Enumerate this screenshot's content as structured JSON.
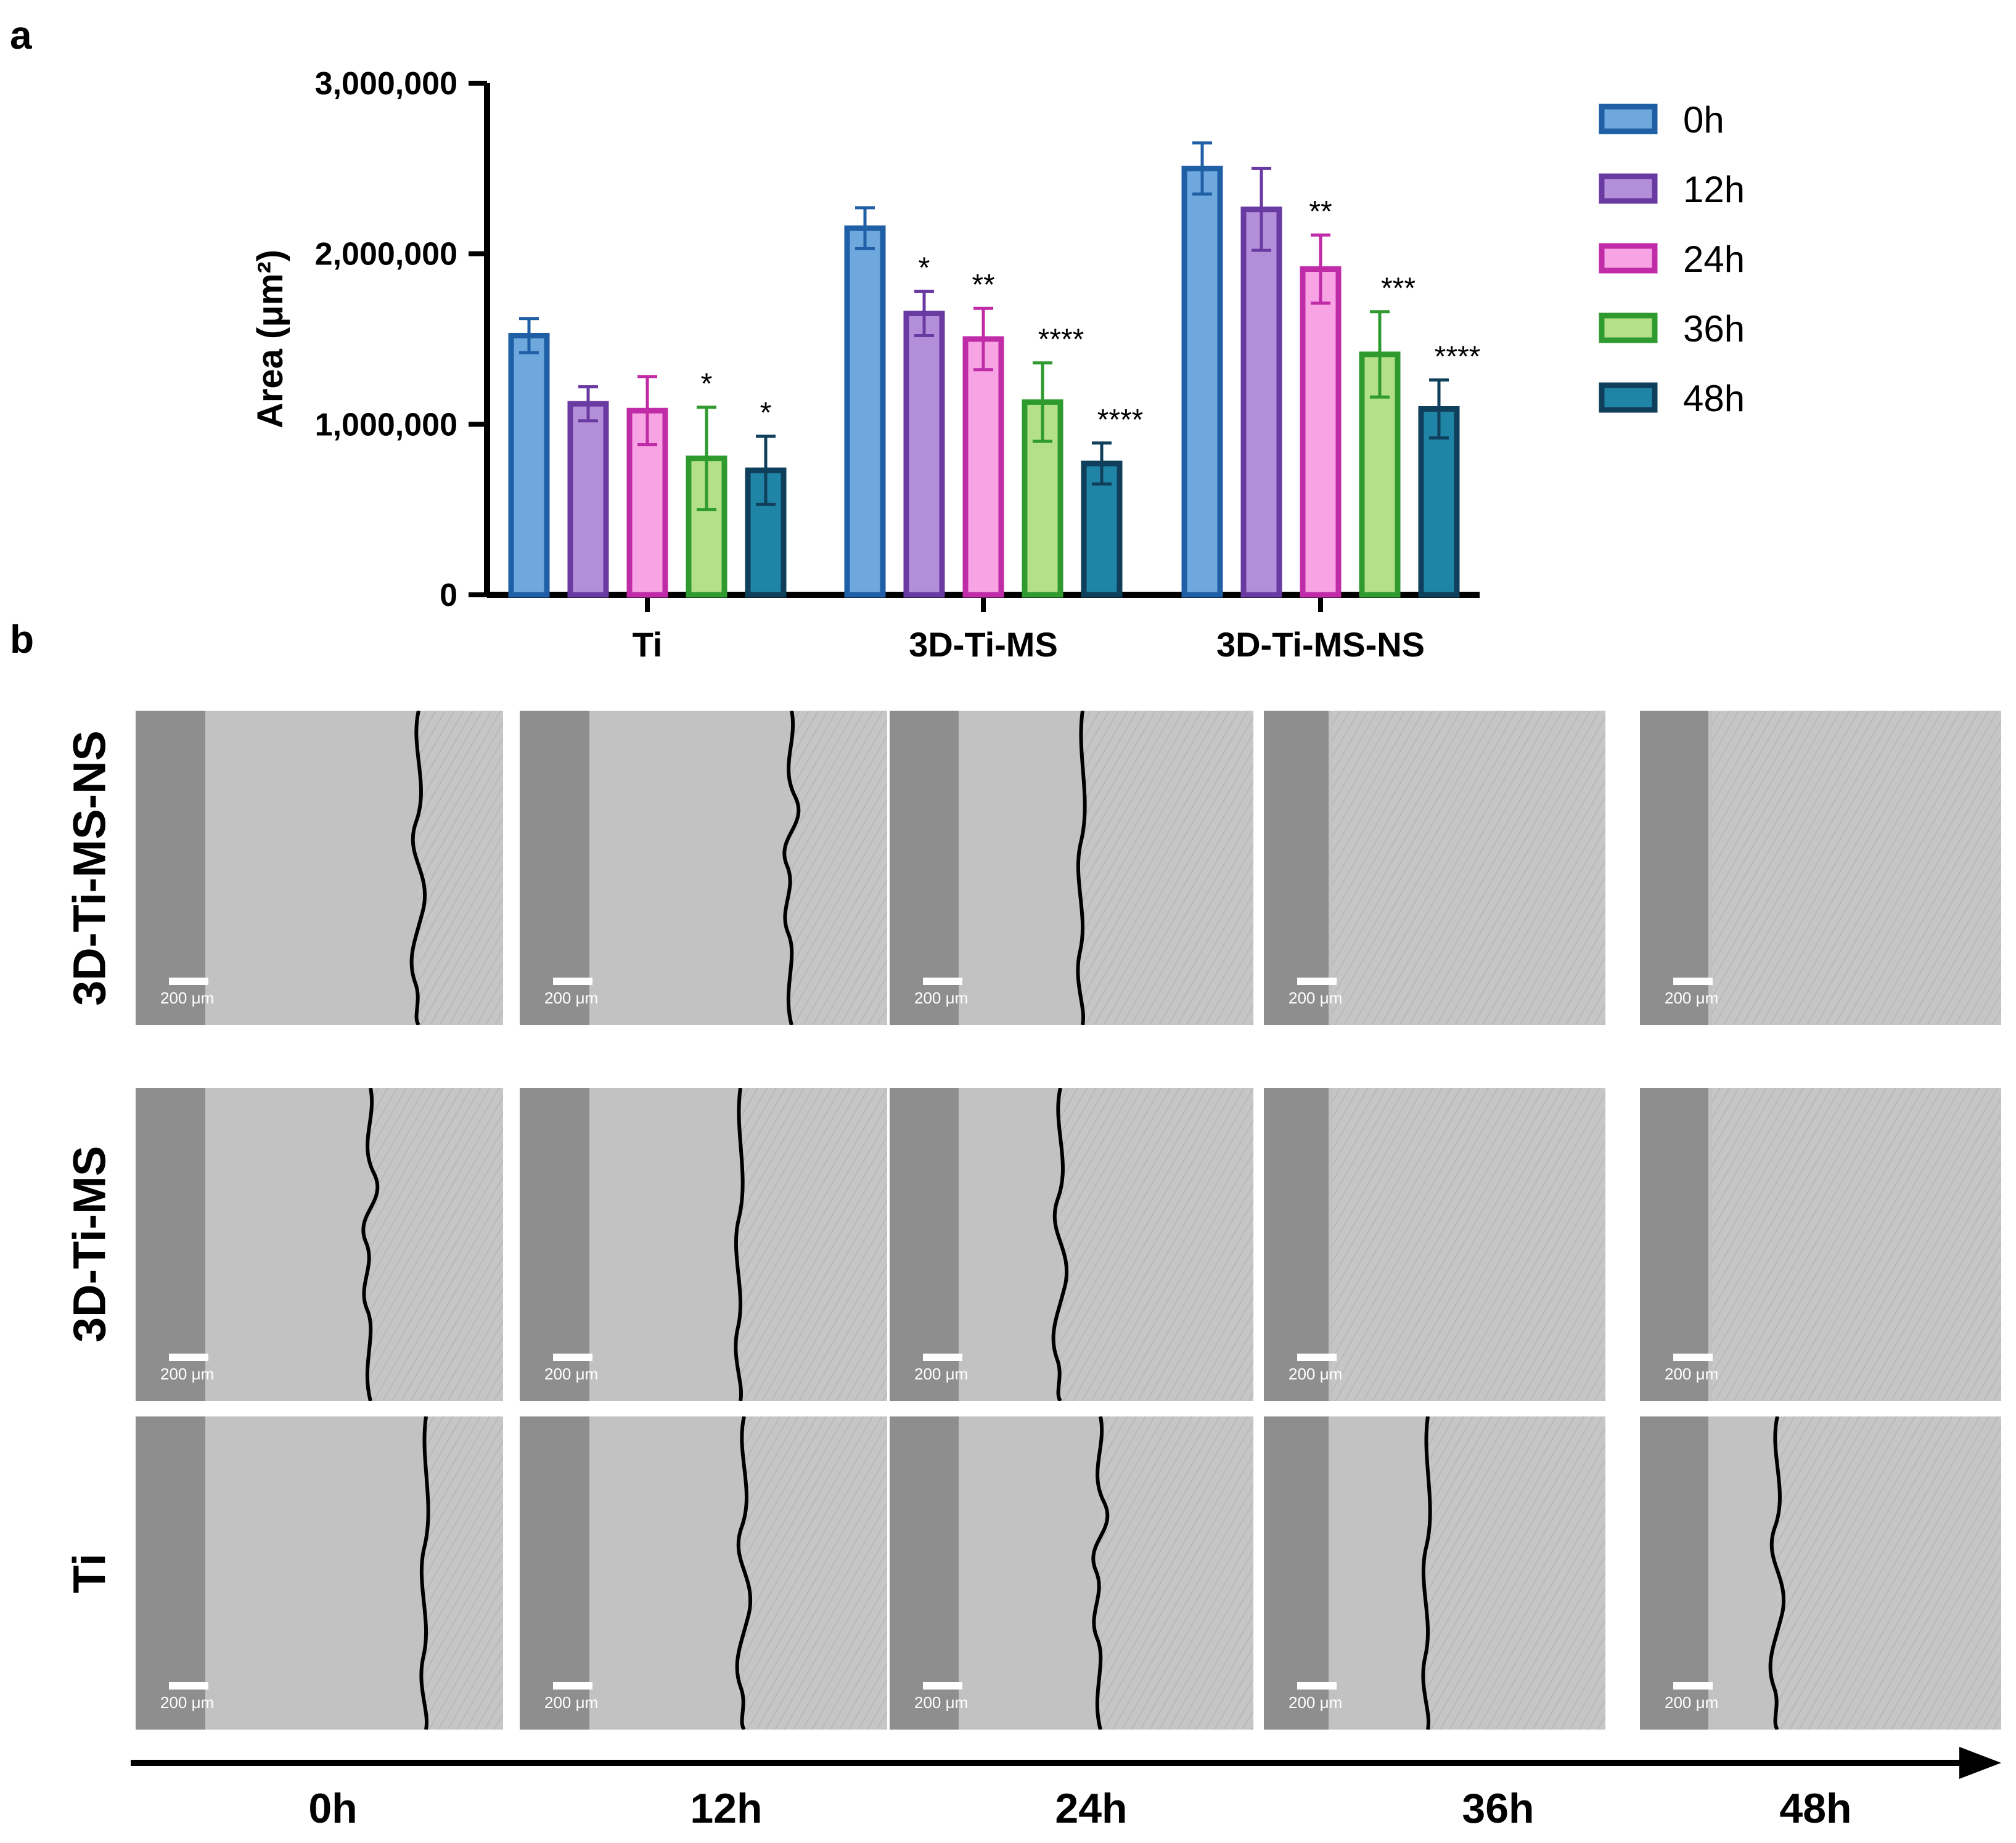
{
  "panel_a_label": "a",
  "panel_b_label": "b",
  "chart_data": {
    "type": "bar",
    "ylabel": "Area (μm²)",
    "ylim": [
      0,
      3000000
    ],
    "yticks": [
      0,
      1000000,
      2000000,
      3000000
    ],
    "ytick_labels": [
      "0",
      "1,000,000",
      "2,000,000",
      "3,000,000"
    ],
    "categories": [
      "Ti",
      "3D-Ti-MS",
      "3D-Ti-MS-NS"
    ],
    "legend_position": "right",
    "series": [
      {
        "name": "0h",
        "fill": "#6fa8dc",
        "stroke": "#1f5fa6",
        "values": [
          1520000,
          2150000,
          2500000
        ],
        "errors": [
          100000,
          120000,
          150000
        ],
        "sig": [
          "",
          "",
          ""
        ]
      },
      {
        "name": "12h",
        "fill": "#b48fd9",
        "stroke": "#6a3aa3",
        "values": [
          1120000,
          1650000,
          2260000
        ],
        "errors": [
          100000,
          130000,
          240000
        ],
        "sig": [
          "",
          "*",
          ""
        ]
      },
      {
        "name": "24h",
        "fill": "#f7a3e4",
        "stroke": "#c02ba8",
        "values": [
          1080000,
          1500000,
          1910000
        ],
        "errors": [
          200000,
          180000,
          200000
        ],
        "sig": [
          "",
          "**",
          "**"
        ]
      },
      {
        "name": "36h",
        "fill": "#b4e08a",
        "stroke": "#2f9a2f",
        "values": [
          800000,
          1130000,
          1410000
        ],
        "errors": [
          300000,
          230000,
          250000
        ],
        "sig": [
          "*",
          "****",
          "***"
        ]
      },
      {
        "name": "48h",
        "fill": "#1f84a6",
        "stroke": "#0f3f5a",
        "values": [
          730000,
          770000,
          1090000
        ],
        "errors": [
          200000,
          120000,
          170000
        ],
        "sig": [
          "*",
          "****",
          "****"
        ]
      }
    ]
  },
  "panel_b": {
    "row_labels": [
      "3D-Ti-MS-NS",
      "3D-Ti-MS",
      "Ti"
    ],
    "time_labels": [
      "0h",
      "12h",
      "24h",
      "36h",
      "48h"
    ],
    "scale_bar_label": "200 μm",
    "fronts": [
      [
        0.77,
        0.74,
        0.53,
        null,
        null
      ],
      [
        0.64,
        0.6,
        0.47,
        null,
        null
      ],
      [
        0.79,
        0.61,
        0.58,
        0.48,
        0.38
      ]
    ]
  }
}
